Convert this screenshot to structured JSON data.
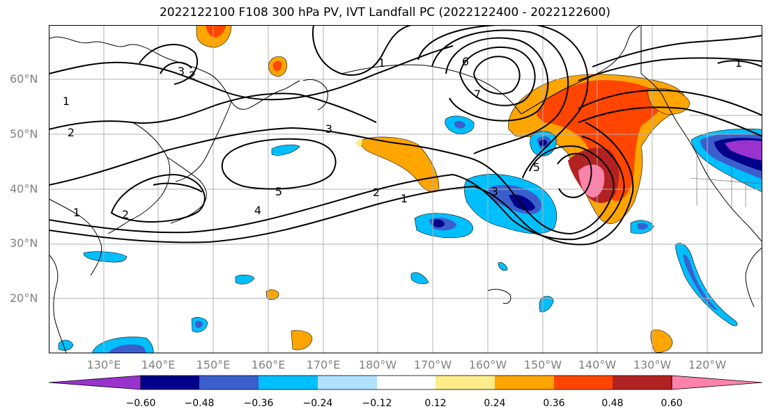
{
  "title": "2022122100 F108 300 hPa PV, IVT Landfall PC (2022122400 - 2022122600)",
  "lat_labels": [
    "60°N",
    "50°N",
    "40°N",
    "30°N",
    "20°N"
  ],
  "lon_labels": [
    "130°E",
    "140°E",
    "150°E",
    "160°E",
    "170°E",
    "180°W",
    "170°W",
    "160°W",
    "150°W",
    "140°W",
    "130°W",
    "120°W"
  ],
  "contour_labels": [
    "1",
    "2",
    "3",
    "2",
    "1",
    "2",
    "3",
    "4",
    "5",
    "2",
    "1",
    "3",
    "5",
    "6",
    "7",
    "1",
    "1"
  ],
  "colorbar": {
    "tick_labels": [
      "−0.60",
      "−0.48",
      "−0.36",
      "−0.24",
      "−0.12",
      "0.12",
      "0.24",
      "0.36",
      "0.48",
      "0.60"
    ],
    "colors": [
      "#9a32cd",
      "#00008b",
      "#3a5fcd",
      "#00bfff",
      "#b0e2ff",
      "#ffffff",
      "#ffec8b",
      "#ffa500",
      "#ff4500",
      "#b22222",
      "#ff82ab"
    ]
  },
  "map_extent": {
    "lon_min": 120,
    "lon_max": 250,
    "lat_min": 10,
    "lat_max": 70
  }
}
